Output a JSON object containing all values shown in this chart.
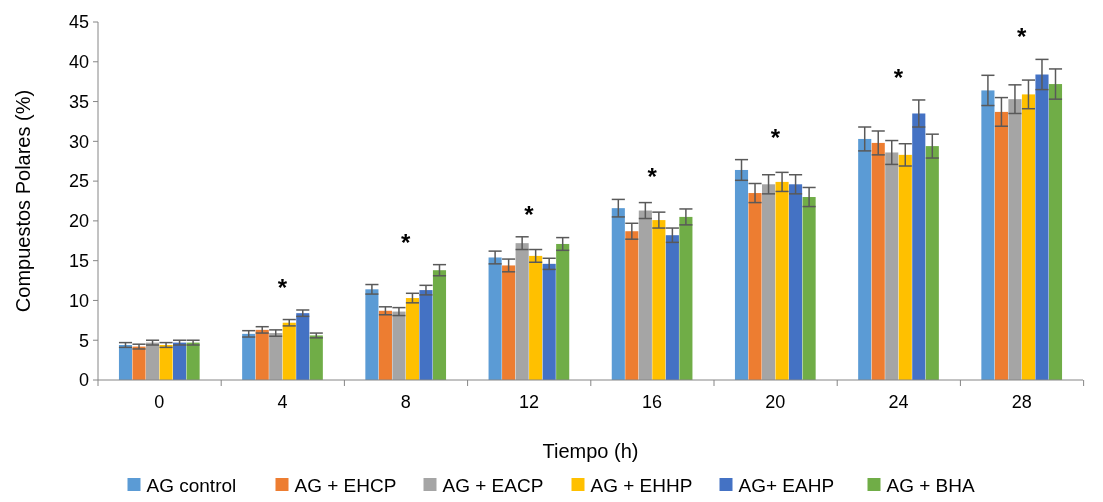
{
  "chart_data": {
    "type": "bar",
    "xlabel": "Tiempo (h)",
    "ylabel": "Compuestos Polares (%)",
    "categories": [
      "0",
      "4",
      "8",
      "12",
      "16",
      "20",
      "24",
      "28"
    ],
    "ylim": [
      0,
      45
    ],
    "yticks": [
      0,
      5,
      10,
      15,
      20,
      25,
      30,
      35,
      40,
      45
    ],
    "grid": false,
    "legend": "bottom",
    "series": [
      {
        "name": "AG control",
        "color": "#5b9bd5",
        "values": [
          4.4,
          5.8,
          11.4,
          15.4,
          21.6,
          26.4,
          30.3,
          36.4
        ],
        "errors": [
          0.3,
          0.4,
          0.6,
          0.8,
          1.1,
          1.3,
          1.5,
          1.9
        ]
      },
      {
        "name": "AG + EHCP",
        "color": "#ed7d31",
        "values": [
          4.2,
          6.3,
          8.7,
          14.4,
          18.7,
          23.5,
          29.8,
          33.7
        ],
        "errors": [
          0.3,
          0.4,
          0.5,
          0.8,
          1.0,
          1.2,
          1.5,
          1.8
        ]
      },
      {
        "name": "AG + EACP",
        "color": "#a5a5a5",
        "values": [
          4.7,
          5.9,
          8.6,
          17.2,
          21.3,
          24.6,
          28.6,
          35.3
        ],
        "errors": [
          0.3,
          0.4,
          0.5,
          0.8,
          1.0,
          1.2,
          1.5,
          1.8
        ]
      },
      {
        "name": "AG + EHHP",
        "color": "#ffc000",
        "values": [
          4.4,
          7.2,
          10.3,
          15.6,
          20.1,
          24.9,
          28.3,
          35.9
        ],
        "errors": [
          0.3,
          0.4,
          0.6,
          0.8,
          1.0,
          1.2,
          1.4,
          1.8
        ]
      },
      {
        "name": "AG+ EAHP",
        "color": "#4472c4",
        "values": [
          4.7,
          8.4,
          11.3,
          14.6,
          18.2,
          24.6,
          33.5,
          38.4
        ],
        "errors": [
          0.3,
          0.4,
          0.6,
          0.7,
          0.9,
          1.2,
          1.7,
          1.9
        ]
      },
      {
        "name": "AG + BHA",
        "color": "#70ad47",
        "values": [
          4.7,
          5.6,
          13.8,
          17.1,
          20.5,
          23.0,
          29.4,
          37.2
        ],
        "errors": [
          0.3,
          0.3,
          0.7,
          0.8,
          1.0,
          1.2,
          1.5,
          1.9
        ]
      }
    ],
    "annotations": [
      "*",
      "*",
      "*",
      "*",
      "*",
      "*",
      "*"
    ]
  }
}
